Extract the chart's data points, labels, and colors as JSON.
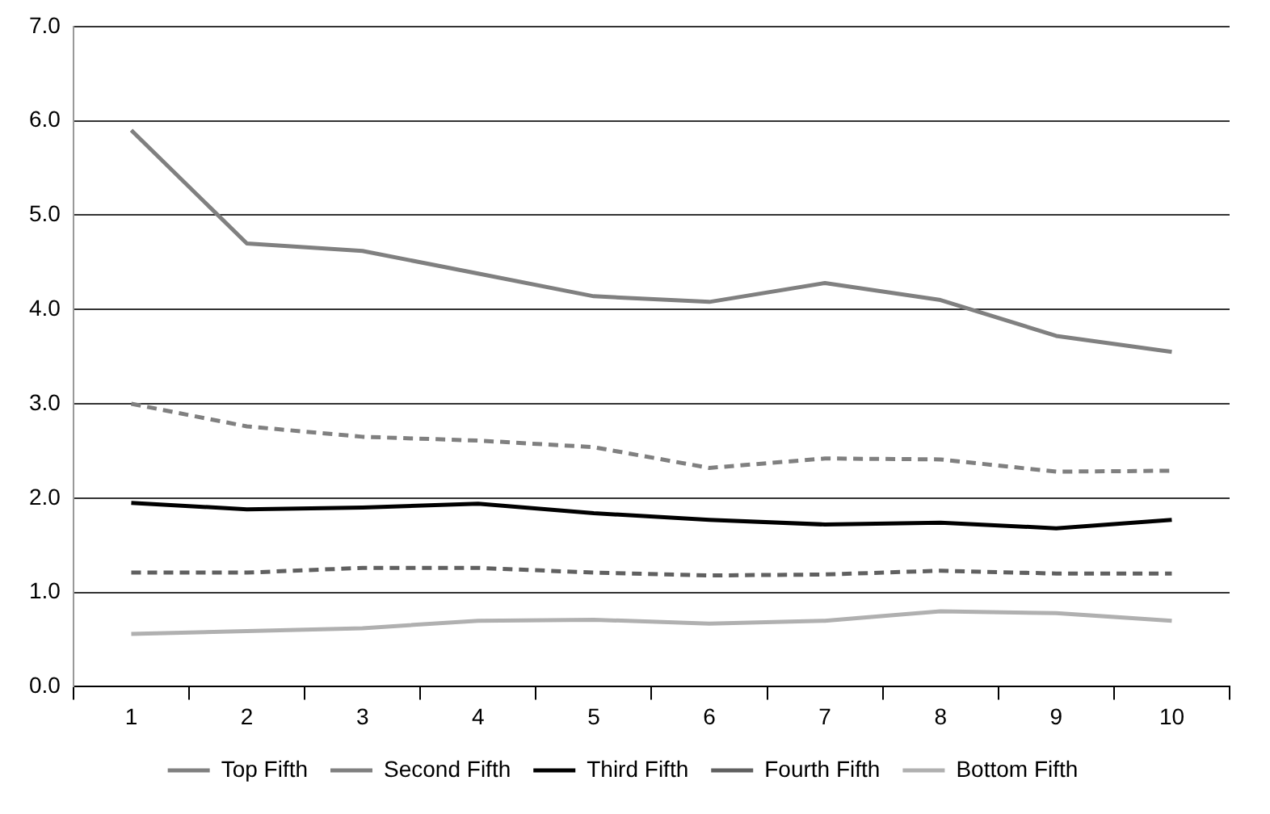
{
  "chart_data": {
    "type": "line",
    "categories": [
      "1",
      "2",
      "3",
      "4",
      "5",
      "6",
      "7",
      "8",
      "9",
      "10"
    ],
    "series": [
      {
        "name": "Top Fifth",
        "color": "#808080",
        "line_style": "solid",
        "values": [
          5.9,
          4.7,
          4.62,
          4.38,
          4.14,
          4.08,
          4.28,
          4.1,
          3.72,
          3.55
        ]
      },
      {
        "name": "Second Fifth",
        "color": "#808080",
        "line_style": "dashed",
        "values": [
          3.0,
          2.76,
          2.65,
          2.61,
          2.54,
          2.32,
          2.42,
          2.41,
          2.28,
          2.29
        ]
      },
      {
        "name": "Third Fifth",
        "color": "#000000",
        "line_style": "solid",
        "values": [
          1.95,
          1.88,
          1.9,
          1.94,
          1.84,
          1.77,
          1.72,
          1.74,
          1.68,
          1.77
        ]
      },
      {
        "name": "Fourth Fifth",
        "color": "#606060",
        "line_style": "dashed",
        "values": [
          1.21,
          1.21,
          1.26,
          1.26,
          1.21,
          1.18,
          1.19,
          1.23,
          1.2,
          1.2
        ]
      },
      {
        "name": "Bottom Fifth",
        "color": "#b0b0b0",
        "line_style": "solid",
        "values": [
          0.56,
          0.59,
          0.62,
          0.7,
          0.71,
          0.67,
          0.7,
          0.8,
          0.78,
          0.7
        ]
      }
    ],
    "ylim": [
      0,
      7
    ],
    "yticks": [
      {
        "value": 0,
        "label": "0.0"
      },
      {
        "value": 1,
        "label": "1.0"
      },
      {
        "value": 2,
        "label": "2.0"
      },
      {
        "value": 3,
        "label": "3.0"
      },
      {
        "value": 4,
        "label": "4.0"
      },
      {
        "value": 5,
        "label": "5.0"
      },
      {
        "value": 6,
        "label": "6.0"
      },
      {
        "value": 7,
        "label": "7.0"
      }
    ],
    "grid": "y",
    "legend": "bottom",
    "marker": "none"
  }
}
